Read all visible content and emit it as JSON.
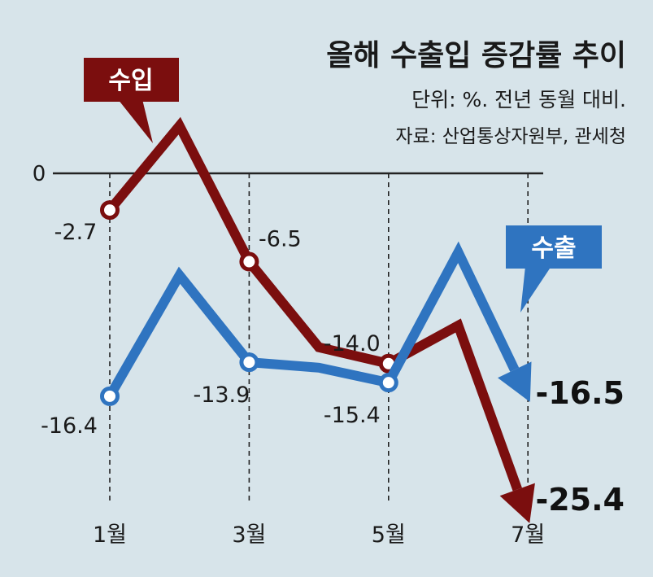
{
  "chart_data": {
    "type": "line",
    "title": "올해 수출입 증감률 추이",
    "subtitle": "단위: %. 전년 동월 대비.",
    "source": "자료: 산업통상자원부, 관세청",
    "x": [
      1,
      2,
      3,
      4,
      5,
      6,
      7
    ],
    "xlabels": [
      "1월",
      "3월",
      "5월",
      "7월"
    ],
    "xlabel_positions": [
      1,
      3,
      5,
      7
    ],
    "zero_label": "0",
    "ylim": [
      -30,
      8
    ],
    "series": [
      {
        "name": "수입",
        "color": "#7b0e0e",
        "values": [
          -2.7,
          3.5,
          -6.5,
          -12.8,
          -14.0,
          -11.2,
          -25.4
        ],
        "marked_points": [
          {
            "x": 1,
            "value": -2.7,
            "label": "-2.7"
          },
          {
            "x": 3,
            "value": -6.5,
            "label": "-6.5"
          },
          {
            "x": 5,
            "value": -14.0,
            "label": "-14.0"
          }
        ],
        "end_label": "-25.4"
      },
      {
        "name": "수출",
        "color": "#2f74c0",
        "values": [
          -16.4,
          -7.5,
          -13.9,
          -14.3,
          -15.4,
          -5.8,
          -16.5
        ],
        "marked_points": [
          {
            "x": 1,
            "value": -16.4,
            "label": "-16.4"
          },
          {
            "x": 3,
            "value": -13.9,
            "label": "-13.9"
          },
          {
            "x": 5,
            "value": -15.4,
            "label": "-15.4"
          }
        ],
        "end_label": "-16.5"
      }
    ]
  }
}
